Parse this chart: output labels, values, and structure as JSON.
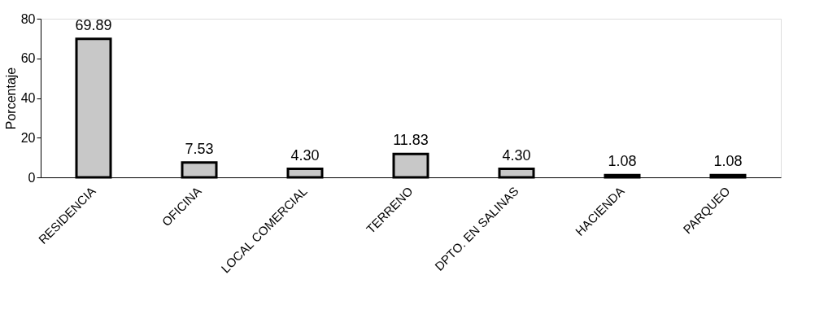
{
  "chart_data": {
    "type": "bar",
    "ylabel": "Porcentaje",
    "categories": [
      "RESIDENCIA",
      "OFICINA",
      "LOCAL COMERCIAL",
      "TERRENO",
      "DPTO. EN SALINAS",
      "HACIENDA",
      "PARQUEO"
    ],
    "values": [
      69.89,
      7.53,
      4.3,
      11.83,
      4.3,
      1.08,
      1.08
    ],
    "value_labels": [
      "69.89",
      "7.53",
      "4.30",
      "11.83",
      "4.30",
      "1.08",
      "1.08"
    ],
    "color": "#c8c8c8",
    "ylim": [
      0,
      80
    ],
    "yticks": [
      0,
      20,
      40,
      60,
      80
    ],
    "grid": false
  }
}
